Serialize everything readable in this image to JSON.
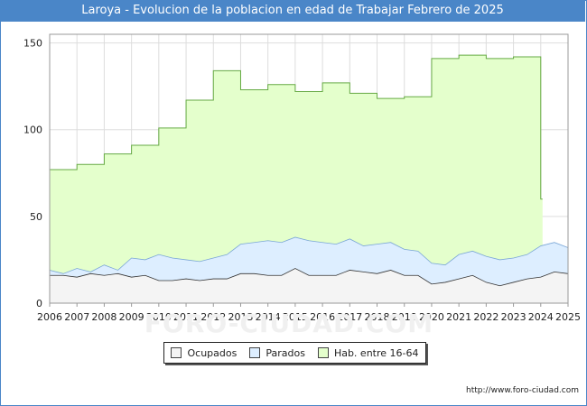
{
  "title": "Laroya - Evolucion de la poblacion en edad de Trabajar Febrero de 2025",
  "footer": {
    "url": "http://www.foro-ciudad.com",
    "watermark": "FORO-CIUDAD.COM"
  },
  "colors": {
    "ocupados": "#f4f4f4",
    "parados": "#ddeeff",
    "hab": "#e4ffcc",
    "hab_line": "#66aa44",
    "line": "#333333",
    "grid": "#dddddd",
    "title_bg": "#4a86c8"
  },
  "chart_data": {
    "type": "area",
    "title": "Laroya - Evolucion de la poblacion en edad de Trabajar Febrero de 2025",
    "xlabel": "",
    "ylabel": "",
    "x_ticks": [
      "2006",
      "2007",
      "2008",
      "2009",
      "2010",
      "2011",
      "2012",
      "2013",
      "2014",
      "2015",
      "2016",
      "2017",
      "2018",
      "2019",
      "2020",
      "2021",
      "2022",
      "2023",
      "2024",
      "2025"
    ],
    "y_ticks": [
      0,
      50,
      100,
      150
    ],
    "xlim": [
      2006,
      2025
    ],
    "ylim": [
      0,
      155
    ],
    "grid": true,
    "legend_position": "bottom",
    "legend": [
      "Ocupados",
      "Parados",
      "Hab. entre 16-64"
    ],
    "series": [
      {
        "name": "Hab. entre 16-64",
        "step": true,
        "x": [
          2006,
          2007,
          2008,
          2009,
          2010,
          2011,
          2012,
          2013,
          2014,
          2015,
          2016,
          2017,
          2018,
          2019,
          2020,
          2021,
          2022,
          2023,
          2024
        ],
        "values": [
          77,
          80,
          86,
          91,
          101,
          117,
          134,
          123,
          126,
          122,
          127,
          121,
          118,
          119,
          141,
          143,
          141,
          142,
          60
        ]
      },
      {
        "name": "Parados",
        "x": [
          2006,
          2006.5,
          2007,
          2007.5,
          2008,
          2008.5,
          2009,
          2009.5,
          2010,
          2010.5,
          2011,
          2011.5,
          2012,
          2012.5,
          2013,
          2013.5,
          2014,
          2014.5,
          2015,
          2015.5,
          2016,
          2016.5,
          2017,
          2017.5,
          2018,
          2018.5,
          2019,
          2019.5,
          2020,
          2020.5,
          2021,
          2021.5,
          2022,
          2022.5,
          2023,
          2023.5,
          2024,
          2024.5,
          2025
        ],
        "values": [
          19,
          17,
          20,
          18,
          22,
          19,
          26,
          25,
          28,
          26,
          25,
          24,
          26,
          28,
          34,
          35,
          36,
          35,
          38,
          36,
          35,
          34,
          37,
          33,
          34,
          35,
          31,
          30,
          23,
          22,
          28,
          30,
          27,
          25,
          26,
          28,
          33,
          35,
          32
        ]
      },
      {
        "name": "Ocupados",
        "x": [
          2006,
          2006.5,
          2007,
          2007.5,
          2008,
          2008.5,
          2009,
          2009.5,
          2010,
          2010.5,
          2011,
          2011.5,
          2012,
          2012.5,
          2013,
          2013.5,
          2014,
          2014.5,
          2015,
          2015.5,
          2016,
          2016.5,
          2017,
          2017.5,
          2018,
          2018.5,
          2019,
          2019.5,
          2020,
          2020.5,
          2021,
          2021.5,
          2022,
          2022.5,
          2023,
          2023.5,
          2024,
          2024.5,
          2025
        ],
        "values": [
          16,
          16,
          15,
          17,
          16,
          17,
          15,
          16,
          13,
          13,
          14,
          13,
          14,
          14,
          17,
          17,
          16,
          16,
          20,
          16,
          16,
          16,
          19,
          18,
          17,
          19,
          16,
          16,
          11,
          12,
          14,
          16,
          12,
          10,
          12,
          14,
          15,
          18,
          17
        ]
      }
    ]
  }
}
